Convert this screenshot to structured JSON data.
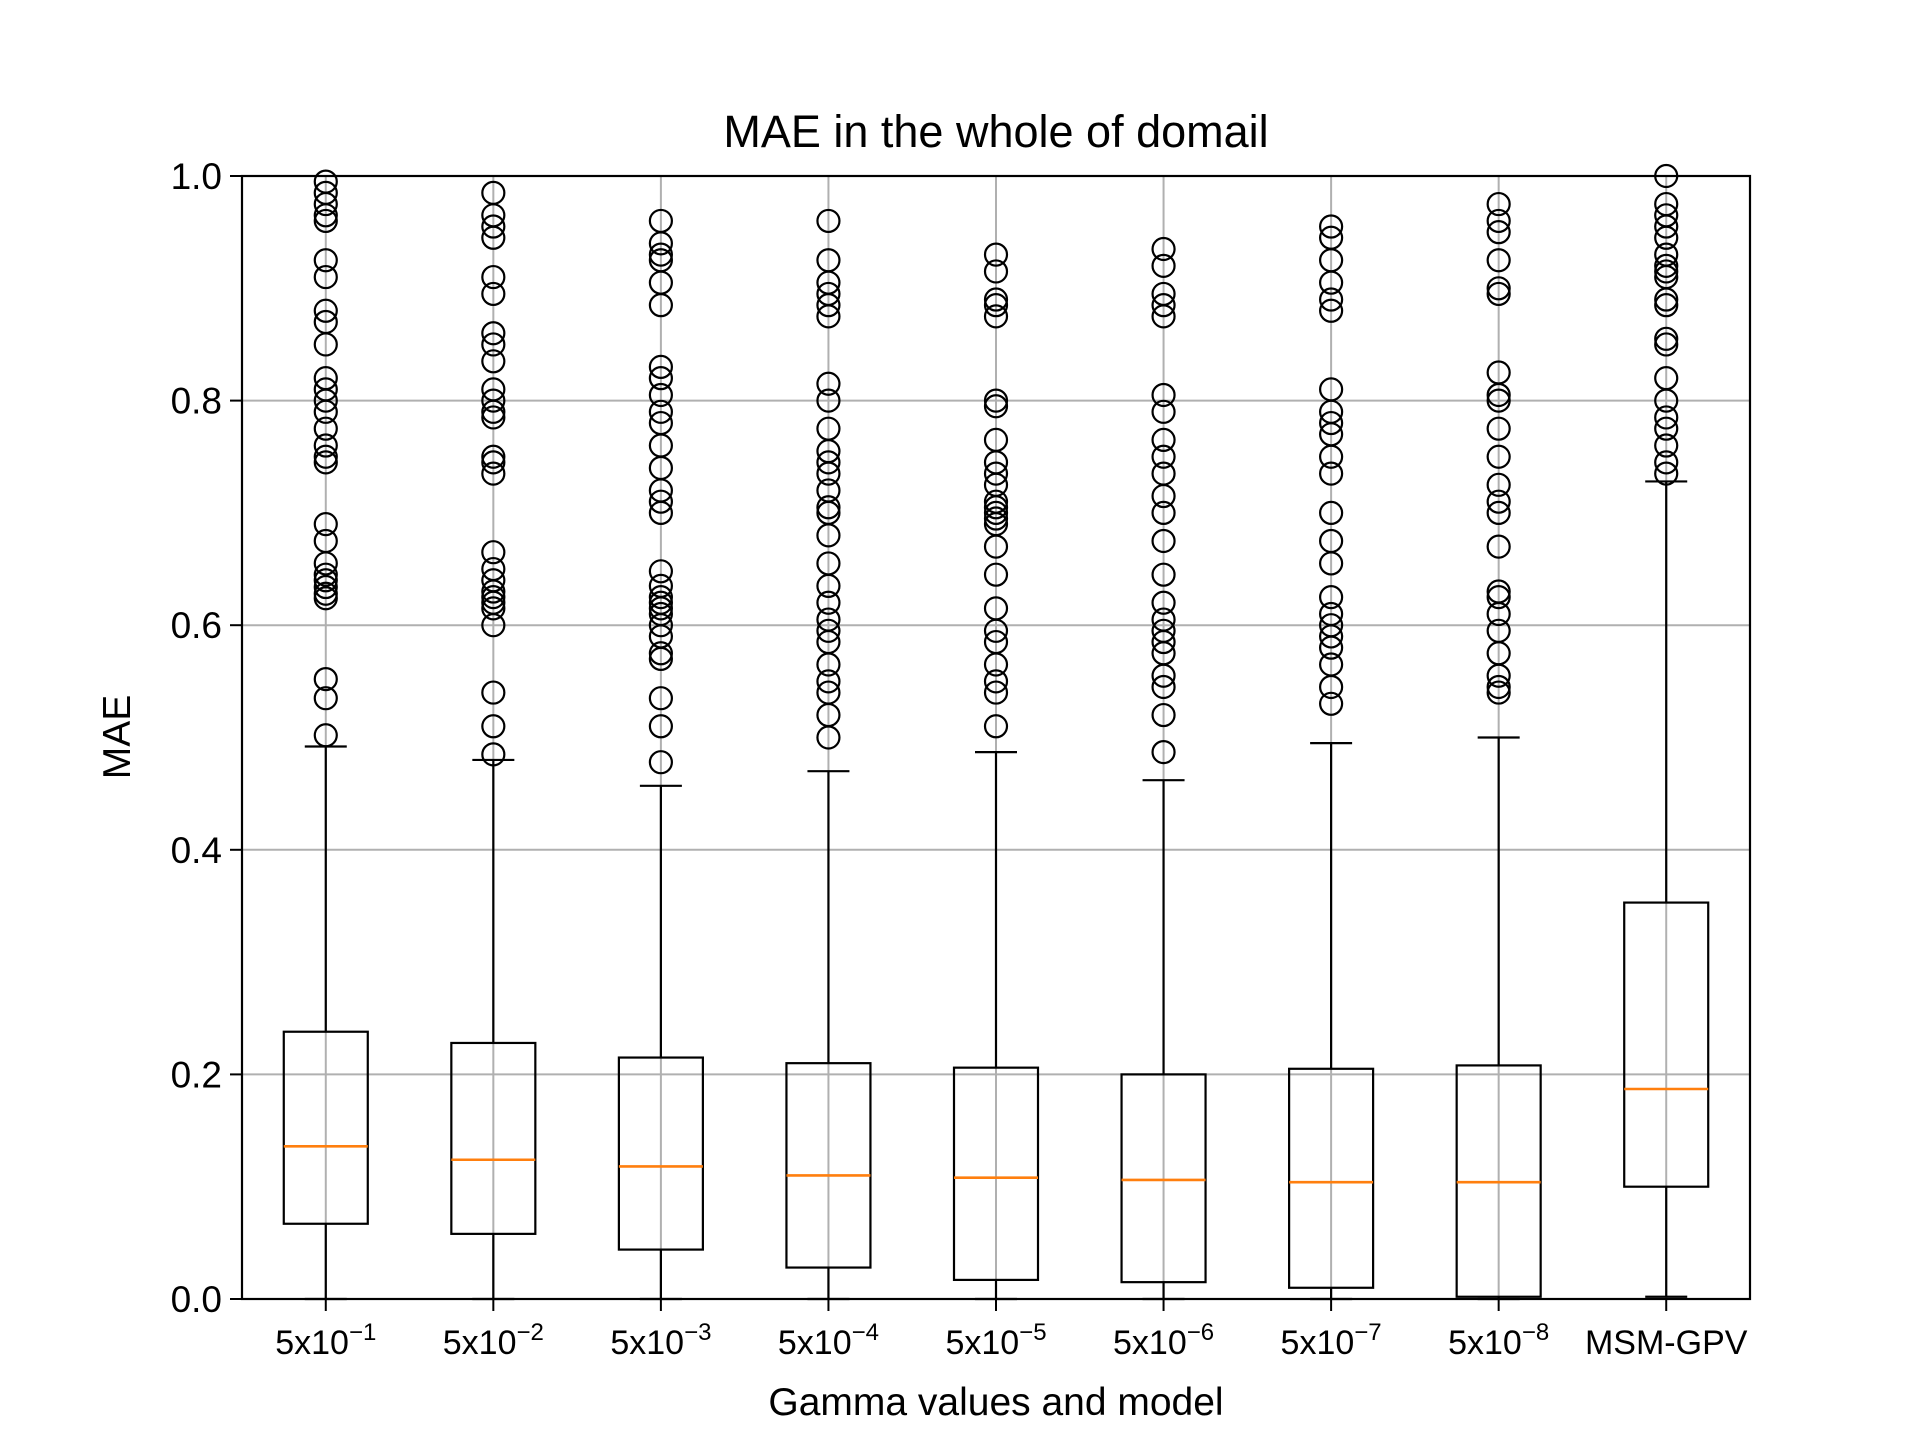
{
  "chart_data": {
    "type": "boxplot",
    "title": "MAE in the whole of domail",
    "xlabel": "Gamma values and model",
    "ylabel": "MAE",
    "ylim": [
      0.0,
      1.0
    ],
    "yticks": [
      "0.0",
      "0.2",
      "0.4",
      "0.6",
      "0.8",
      "1.0"
    ],
    "grid": true,
    "colors": {
      "box": "#000000",
      "median": "#ff7f0e",
      "grid": "#b0b0b0"
    },
    "series": [
      {
        "label": "5x10",
        "exp": "−1",
        "whisker_low": 0.0,
        "q1": 0.067,
        "median": 0.136,
        "q3": 0.238,
        "whisker_high": 0.492,
        "outliers": [
          0.502,
          0.535,
          0.552,
          0.624,
          0.628,
          0.634,
          0.64,
          0.645,
          0.655,
          0.675,
          0.69,
          0.745,
          0.75,
          0.76,
          0.775,
          0.79,
          0.8,
          0.81,
          0.82,
          0.85,
          0.87,
          0.88,
          0.91,
          0.925,
          0.96,
          0.965,
          0.975,
          0.985,
          0.995
        ]
      },
      {
        "label": "5x10",
        "exp": "−2",
        "whisker_low": 0.0,
        "q1": 0.058,
        "median": 0.124,
        "q3": 0.228,
        "whisker_high": 0.48,
        "outliers": [
          0.485,
          0.51,
          0.54,
          0.6,
          0.615,
          0.62,
          0.625,
          0.63,
          0.64,
          0.65,
          0.665,
          0.735,
          0.745,
          0.75,
          0.785,
          0.79,
          0.8,
          0.81,
          0.835,
          0.85,
          0.86,
          0.895,
          0.91,
          0.945,
          0.955,
          0.965,
          0.985
        ]
      },
      {
        "label": "5x10",
        "exp": "−3",
        "whisker_low": 0.0,
        "q1": 0.044,
        "median": 0.118,
        "q3": 0.215,
        "whisker_high": 0.457,
        "outliers": [
          0.478,
          0.51,
          0.535,
          0.57,
          0.575,
          0.59,
          0.6,
          0.61,
          0.615,
          0.62,
          0.625,
          0.635,
          0.648,
          0.7,
          0.71,
          0.72,
          0.74,
          0.76,
          0.78,
          0.79,
          0.805,
          0.82,
          0.83,
          0.885,
          0.905,
          0.925,
          0.93,
          0.94,
          0.96
        ]
      },
      {
        "label": "5x10",
        "exp": "−4",
        "whisker_low": 0.0,
        "q1": 0.028,
        "median": 0.11,
        "q3": 0.21,
        "whisker_high": 0.47,
        "outliers": [
          0.5,
          0.52,
          0.54,
          0.55,
          0.565,
          0.585,
          0.595,
          0.605,
          0.62,
          0.635,
          0.655,
          0.68,
          0.7,
          0.705,
          0.72,
          0.735,
          0.745,
          0.755,
          0.775,
          0.8,
          0.815,
          0.875,
          0.885,
          0.895,
          0.905,
          0.925,
          0.96
        ]
      },
      {
        "label": "5x10",
        "exp": "−5",
        "whisker_low": 0.0,
        "q1": 0.017,
        "median": 0.108,
        "q3": 0.206,
        "whisker_high": 0.487,
        "outliers": [
          0.51,
          0.54,
          0.55,
          0.565,
          0.585,
          0.595,
          0.615,
          0.645,
          0.67,
          0.69,
          0.695,
          0.7,
          0.705,
          0.71,
          0.725,
          0.735,
          0.745,
          0.765,
          0.795,
          0.8,
          0.875,
          0.885,
          0.89,
          0.915,
          0.93
        ]
      },
      {
        "label": "5x10",
        "exp": "−6",
        "whisker_low": 0.0,
        "q1": 0.015,
        "median": 0.106,
        "q3": 0.2,
        "whisker_high": 0.462,
        "outliers": [
          0.487,
          0.52,
          0.545,
          0.555,
          0.575,
          0.585,
          0.595,
          0.605,
          0.62,
          0.645,
          0.675,
          0.7,
          0.715,
          0.735,
          0.75,
          0.765,
          0.79,
          0.805,
          0.875,
          0.885,
          0.895,
          0.92,
          0.935
        ]
      },
      {
        "label": "5x10",
        "exp": "−7",
        "whisker_low": 0.0,
        "q1": 0.01,
        "median": 0.104,
        "q3": 0.205,
        "whisker_high": 0.495,
        "outliers": [
          0.53,
          0.545,
          0.565,
          0.58,
          0.59,
          0.6,
          0.61,
          0.625,
          0.655,
          0.675,
          0.7,
          0.735,
          0.75,
          0.77,
          0.78,
          0.79,
          0.81,
          0.88,
          0.89,
          0.905,
          0.925,
          0.945,
          0.955
        ]
      },
      {
        "label": "5x10",
        "exp": "−8",
        "whisker_low": 0.0,
        "q1": 0.002,
        "median": 0.104,
        "q3": 0.208,
        "whisker_high": 0.5,
        "outliers": [
          0.54,
          0.545,
          0.555,
          0.575,
          0.595,
          0.61,
          0.625,
          0.63,
          0.67,
          0.7,
          0.71,
          0.725,
          0.75,
          0.775,
          0.8,
          0.805,
          0.825,
          0.895,
          0.9,
          0.925,
          0.95,
          0.96,
          0.975
        ]
      },
      {
        "label": "MSM-GPV",
        "exp": "",
        "whisker_low": 0.002,
        "q1": 0.1,
        "median": 0.187,
        "q3": 0.353,
        "whisker_high": 0.728,
        "outliers": [
          0.735,
          0.745,
          0.76,
          0.775,
          0.785,
          0.8,
          0.82,
          0.85,
          0.855,
          0.885,
          0.89,
          0.91,
          0.915,
          0.92,
          0.93,
          0.945,
          0.955,
          0.965,
          0.975,
          1.0
        ]
      }
    ]
  }
}
